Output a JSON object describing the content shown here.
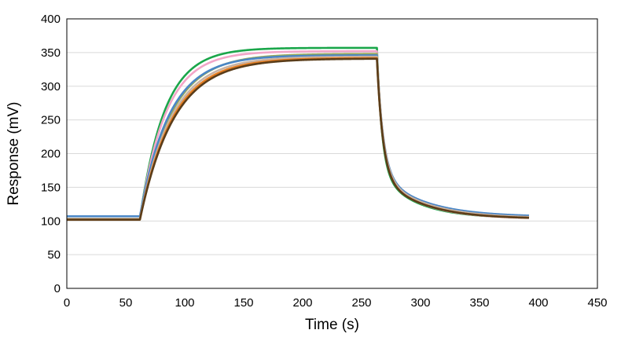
{
  "chart_data": {
    "type": "line",
    "xlabel": "Time (s)",
    "ylabel": "Response (mV)",
    "xlim": [
      0,
      450
    ],
    "ylim": [
      0,
      400
    ],
    "x_ticks": [
      0,
      50,
      100,
      150,
      200,
      250,
      300,
      350,
      400,
      450
    ],
    "y_ticks": [
      0,
      50,
      100,
      150,
      200,
      250,
      300,
      350,
      400
    ],
    "grid": "horizontal",
    "legend": "none",
    "injection_start_s": 62,
    "dissociation_start_s": 263,
    "end_s": 392,
    "series": [
      {
        "color": "#1aa64a",
        "baseline": 103,
        "plateau": 357,
        "tau_assoc": 21,
        "tau_dissoc": 9.5,
        "end_value": 104
      },
      {
        "color": "#f2a6c8",
        "baseline": 103,
        "plateau": 352,
        "tau_assoc": 22,
        "tau_dissoc": 10.5,
        "end_value": 103
      },
      {
        "color": "#9aaa5a",
        "baseline": 103,
        "plateau": 348,
        "tau_assoc": 26,
        "tau_dissoc": 11,
        "end_value": 104
      },
      {
        "color": "#4a86c6",
        "baseline": 107,
        "plateau": 346,
        "tau_assoc": 25,
        "tau_dissoc": 11.5,
        "end_value": 106
      },
      {
        "color": "#c8b3a3",
        "baseline": 103,
        "plateau": 344,
        "tau_assoc": 27,
        "tau_dissoc": 11.5,
        "end_value": 104
      },
      {
        "color": "#e67e22",
        "baseline": 102,
        "plateau": 342,
        "tau_assoc": 28,
        "tau_dissoc": 11,
        "end_value": 103
      },
      {
        "color": "#5a3d1a",
        "baseline": 102,
        "plateau": 341,
        "tau_assoc": 29,
        "tau_dissoc": 11,
        "end_value": 103
      }
    ]
  }
}
